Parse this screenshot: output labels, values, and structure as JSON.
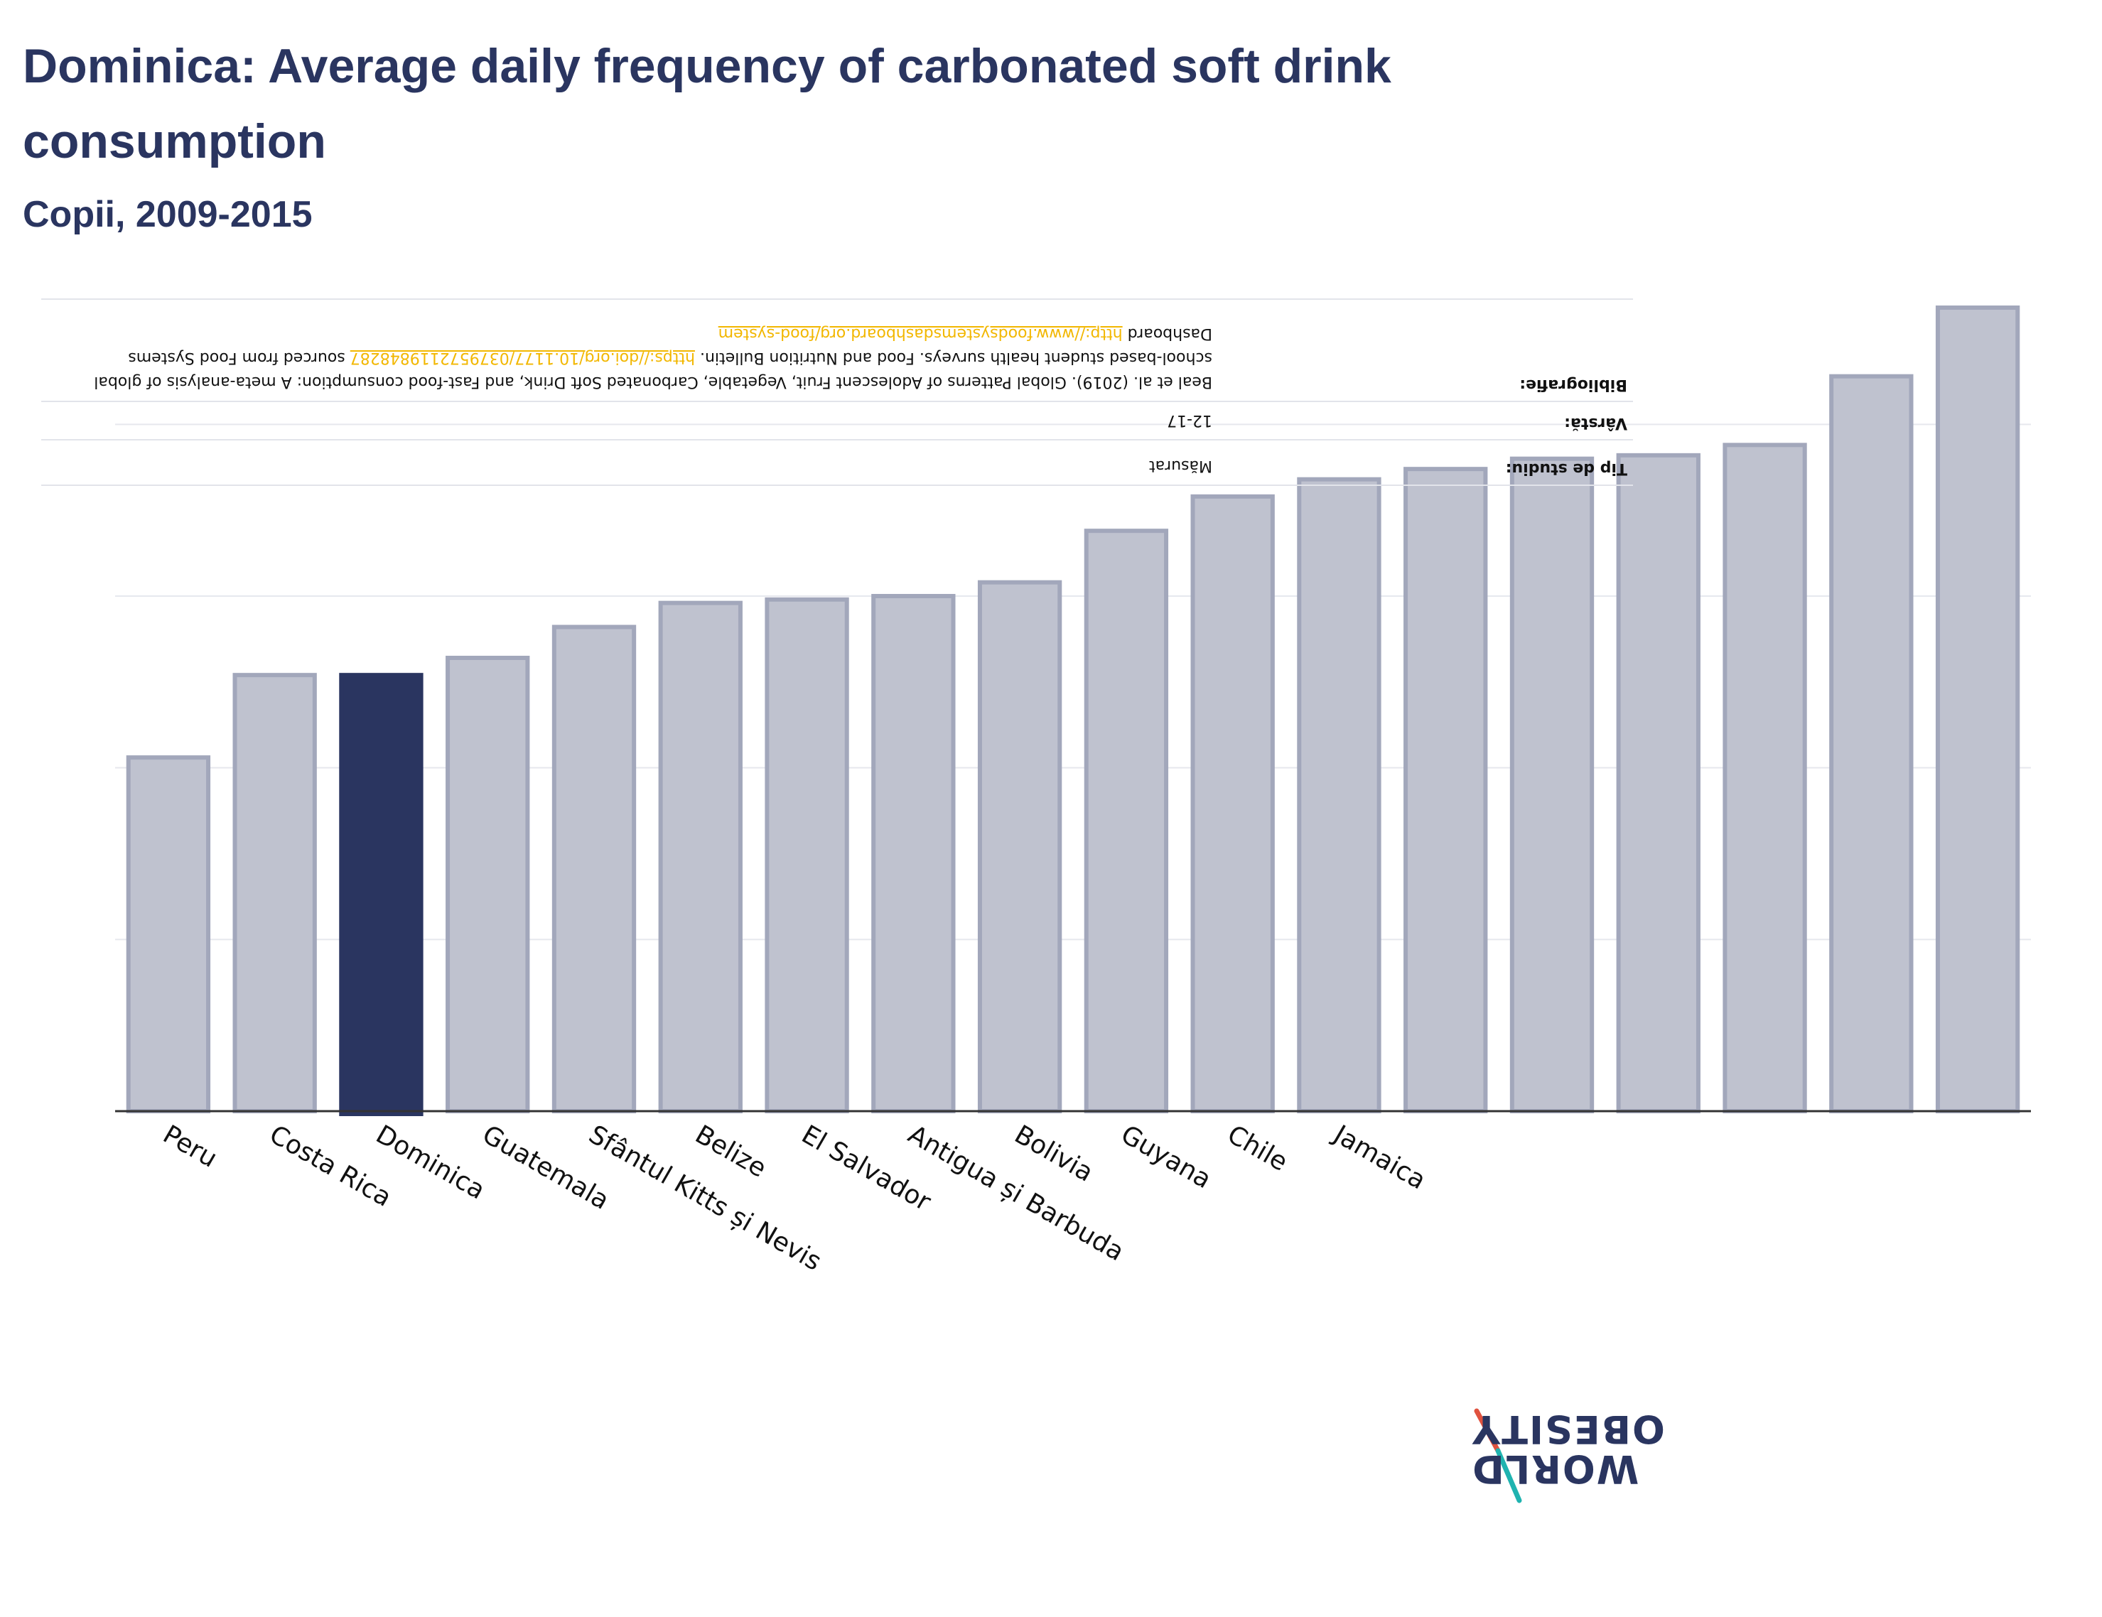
{
  "header": {
    "title": "Dominica: Average daily frequency of carbonated soft drink consumption",
    "subtitle": "Copii, 2009-2015"
  },
  "metadata": {
    "study_type_label": "Tip de studiu:",
    "study_type_value": "Măsurat",
    "age_label": "Vârstă:",
    "age_value": "12-17",
    "bibliography_label": "Bibliografie:",
    "bibliography_text": "Beal et al. (2019). Global Patterns of Adolescent Fruit, Vegetable, Carbonated Soft Drink, and Fast-food consumption: A meta-analysis of global school-based student health surveys. Food and Nutrition Bulletin.",
    "bibliography_link": "https://doi.org/10.1177/0379572119848287",
    "sourced_from": "sourced from Food Systems Dashboard",
    "source_link": "http://www.foodsystemsdashboard.org/food-system"
  },
  "logo": {
    "line1": "OBESITY",
    "line2": "WORLD"
  },
  "colors": {
    "highlight": "#2a3560",
    "bar": "#bfc2cf",
    "bar_stroke": "#a2a7bb",
    "axis": "#333333",
    "grid": "#e6e8ee",
    "logo_red": "#e0523f",
    "logo_teal": "#1fb3b0"
  },
  "chart_data": {
    "type": "bar",
    "title": "Dominica: Average daily frequency of carbonated soft drink consumption",
    "subtitle": "Copii, 2009-2015",
    "highlight": "Dominica",
    "categories": [
      "Peru",
      "Costa Rica",
      "Dominica",
      "Guatemala",
      "Sfântul Kitts și Nevis",
      "Belize",
      "El Salvador",
      "Antigua și Barbuda",
      "Bolivia",
      "Guyana",
      "Chile",
      "Jamaica",
      "",
      "",
      "",
      "",
      "",
      ""
    ],
    "values": [
      1.03,
      1.27,
      1.27,
      1.32,
      1.41,
      1.48,
      1.49,
      1.5,
      1.54,
      1.69,
      1.79,
      1.84,
      1.87,
      1.9,
      1.91,
      1.94,
      2.14,
      2.34
    ],
    "ylim": [
      0,
      2.4
    ],
    "grid": true,
    "xlabel": "",
    "ylabel": ""
  }
}
